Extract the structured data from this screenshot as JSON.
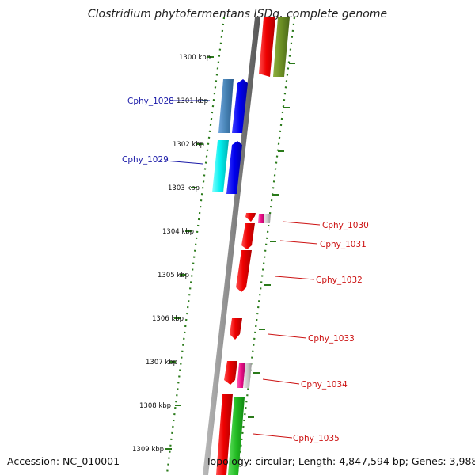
{
  "title": "Clostridium phytofermentans ISDg, complete genome",
  "footer": {
    "accession": "Accession: NC_010001",
    "summary": "Topology: circular; Length: 4,847,594 bp; Genes: 3,988"
  },
  "ticks": [
    "1300 kbp",
    "1301 kbp",
    "1302 kbp",
    "1303 kbp",
    "1304 kbp",
    "1305 kbp",
    "1306 kbp",
    "1307 kbp",
    "1308 kbp",
    "1309 kbp"
  ],
  "genes": [
    {
      "name": "Cphy_1028",
      "strand": "reverse",
      "color": "#1a1aa8"
    },
    {
      "name": "Cphy_1029",
      "strand": "reverse",
      "color": "#1a1aa8"
    },
    {
      "name": "Cphy_1030",
      "strand": "forward",
      "color": "#cc1111"
    },
    {
      "name": "Cphy_1031",
      "strand": "forward",
      "color": "#cc1111"
    },
    {
      "name": "Cphy_1032",
      "strand": "forward",
      "color": "#cc1111"
    },
    {
      "name": "Cphy_1033",
      "strand": "forward",
      "color": "#cc1111"
    },
    {
      "name": "Cphy_1034",
      "strand": "forward",
      "color": "#cc1111"
    },
    {
      "name": "Cphy_1035",
      "strand": "forward",
      "color": "#cc1111"
    }
  ],
  "colors": {
    "backbone": "#888888",
    "tick_marks": "#2a7a1a",
    "cds_forward": "#ee1111",
    "cds_reverse": "#1111ee",
    "cog_blue": "#4a86c0",
    "cog_cyan": "#00e6e6",
    "cog_olive": "#6b8e23",
    "cog_green": "#22aa22",
    "cog_pink": "#ee1188"
  }
}
